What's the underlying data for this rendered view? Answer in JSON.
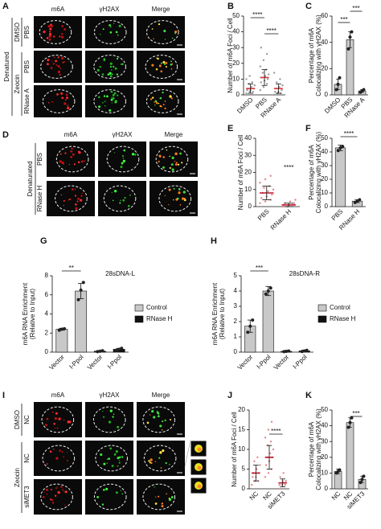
{
  "images": [
    {
      "letter": "A",
      "columns": [
        "m6A",
        "γH2AX",
        "Merge"
      ],
      "outer": "Denatured",
      "groups": [
        {
          "label": "DMSO",
          "rows": [
            "PBS"
          ]
        },
        {
          "label": "Zeocin",
          "rows": [
            "PBS",
            "RNase A"
          ]
        }
      ]
    },
    {
      "letter": "D",
      "columns": [
        "m6A",
        "γH2AX",
        "Merge"
      ],
      "outer": "Denaturated",
      "groups": [
        {
          "rows": [
            "PBS",
            "RNase H"
          ]
        }
      ]
    },
    {
      "letter": "I",
      "columns": [
        "m6A",
        "γH2AX",
        "Merge"
      ],
      "groups": [
        {
          "label": "DMSO",
          "rows": [
            "NC"
          ]
        },
        {
          "label": "Zeocin",
          "rows": [
            "NC",
            "siMET3"
          ]
        }
      ]
    }
  ],
  "chart_data": [
    {
      "type": "dot",
      "panel": "B",
      "ylabel": [
        "Number of m6A Foci / Cell"
      ],
      "categories": [
        "DMSO",
        "PBS",
        "RNase A"
      ],
      "values": [
        4,
        11,
        4
      ],
      "errors": [
        3,
        5,
        3
      ],
      "color": "#9a9a9a",
      "mean_color": "#e0393e",
      "points": [
        [
          1,
          2,
          2,
          3,
          3,
          4,
          4,
          5,
          6,
          7,
          8,
          10,
          12
        ],
        [
          3,
          5,
          7,
          8,
          9,
          10,
          11,
          12,
          13,
          14,
          16,
          18,
          22,
          26,
          30
        ],
        [
          0,
          1,
          1,
          2,
          2,
          3,
          4,
          5,
          6,
          8,
          10,
          14
        ]
      ],
      "ylim": [
        0,
        50
      ],
      "yticks": [
        0,
        10,
        20,
        30,
        40,
        50
      ],
      "annotations": [
        "****",
        "****"
      ]
    },
    {
      "type": "bar",
      "panel": "C",
      "ylabel": [
        "Percentage of m6A",
        "Colocalizing with γH2AX (%)"
      ],
      "categories": [
        "DMSO",
        "PBS",
        "RNase A"
      ],
      "series": [
        {
          "color": "#c8c8c8",
          "values": [
            8,
            42,
            3
          ],
          "errors": [
            4,
            6,
            1
          ],
          "points": [
            [
              4,
              8,
              13
            ],
            [
              35,
              44,
              48
            ],
            [
              2,
              3,
              4
            ]
          ]
        }
      ],
      "ylim": [
        0,
        60
      ],
      "yticks": [
        0,
        20,
        40,
        60
      ],
      "annotations": [
        "***",
        "***"
      ]
    },
    {
      "type": "dot",
      "panel": "E",
      "ylabel": [
        "Number of m6A Foci / Cell"
      ],
      "categories": [
        "PBS",
        "RNase H"
      ],
      "values": [
        8,
        1
      ],
      "errors": [
        4,
        1
      ],
      "color": "#e08a8a",
      "mean_color": "#c0142a",
      "points": [
        [
          2,
          3,
          4,
          5,
          6,
          7,
          8,
          9,
          10,
          11,
          12,
          14,
          16,
          18
        ],
        [
          0,
          0,
          1,
          1,
          1,
          2,
          2,
          3,
          4
        ]
      ],
      "ylim": [
        0,
        40
      ],
      "yticks": [
        0,
        10,
        20,
        30,
        40
      ],
      "annotations": [
        "****"
      ]
    },
    {
      "type": "bar",
      "panel": "F",
      "ylabel": [
        "Percentage of m6A",
        "Colocalizing with γH2AX (%)"
      ],
      "categories": [
        "PBS",
        "RNase H"
      ],
      "series": [
        {
          "color": "#c8c8c8",
          "values": [
            43,
            4
          ],
          "errors": [
            2,
            1
          ],
          "points": [
            [
              41,
              43,
              44
            ],
            [
              3,
              4,
              5
            ]
          ]
        }
      ],
      "ylim": [
        0,
        50
      ],
      "yticks": [
        0,
        10,
        20,
        30,
        40,
        50
      ],
      "annotations": [
        "****"
      ]
    },
    {
      "type": "bar",
      "panel": "G",
      "title": "28sDNA-L",
      "ylabel": [
        "m6A RNA Enrichment",
        "(Relative to Input)"
      ],
      "categories": [
        "Vector",
        "I-Ppol",
        "Vector",
        "I-Ppol"
      ],
      "series": [
        {
          "name": "Control",
          "color": "#c8c8c8",
          "values": [
            2.4,
            6.4,
            null,
            null
          ],
          "errors": [
            0.1,
            0.8,
            null,
            null
          ],
          "points": [
            [
              2.3,
              2.4,
              2.45
            ],
            [
              5.5,
              6.5,
              7.3
            ],
            null,
            null
          ]
        },
        {
          "name": "RNase H",
          "color": "#111111",
          "values": [
            null,
            null,
            0.1,
            0.3
          ],
          "errors": [
            null,
            null,
            0.05,
            0.1
          ],
          "points": [
            null,
            null,
            [
              0.05,
              0.1,
              0.15
            ],
            [
              0.2,
              0.3,
              0.4
            ]
          ]
        }
      ],
      "ylim": [
        0,
        8
      ],
      "yticks": [
        0,
        2,
        4,
        6,
        8
      ],
      "annotations": [
        "**"
      ]
    },
    {
      "type": "bar",
      "panel": "H",
      "title": "28sDNA-R",
      "ylabel": [
        "m6A RNA Enrichment",
        "(Relative to Input)"
      ],
      "categories": [
        "Vector",
        "I-Ppol",
        "Vector",
        "I-Ppol"
      ],
      "series": [
        {
          "name": "Control",
          "color": "#c8c8c8",
          "values": [
            1.7,
            4.0,
            null,
            null
          ],
          "errors": [
            0.4,
            0.3,
            null,
            null
          ],
          "points": [
            [
              1.3,
              1.7,
              2.1
            ],
            [
              3.8,
              4.0,
              4.2
            ],
            null,
            null
          ]
        },
        {
          "name": "RNase H",
          "color": "#111111",
          "values": [
            null,
            null,
            0.05,
            0.08
          ],
          "errors": [
            null,
            null,
            0.03,
            0.05
          ],
          "points": [
            null,
            null,
            [
              0.03,
              0.05,
              0.07
            ],
            [
              0.04,
              0.08,
              0.12
            ]
          ]
        }
      ],
      "ylim": [
        0,
        5
      ],
      "yticks": [
        0,
        1,
        2,
        3,
        4,
        5
      ],
      "annotations": [
        "***"
      ]
    },
    {
      "type": "dot",
      "panel": "J",
      "ylabel": [
        "Number of m6A Foci / Cell"
      ],
      "categories": [
        "NC",
        "NC",
        "siMET3"
      ],
      "values": [
        4,
        8,
        1.5
      ],
      "errors": [
        2,
        3,
        1
      ],
      "color": "#e08a8a",
      "mean_color": "#c0142a",
      "points": [
        [
          1,
          2,
          2,
          3,
          3,
          4,
          4,
          5,
          6,
          7,
          8
        ],
        [
          3,
          4,
          5,
          6,
          7,
          8,
          8,
          9,
          10,
          11,
          12,
          13,
          15,
          17
        ],
        [
          0,
          1,
          1,
          1,
          2,
          2,
          3,
          4
        ]
      ],
      "ylim": [
        0,
        20
      ],
      "yticks": [
        0,
        5,
        10,
        15,
        20
      ],
      "annotations": [
        "****"
      ]
    },
    {
      "type": "bar",
      "panel": "K",
      "ylabel": [
        "Percentage of m6A",
        "Colocalizing with γH2AX (%)"
      ],
      "categories": [
        "NC",
        "NC",
        "siMET3"
      ],
      "series": [
        {
          "color": "#c8c8c8",
          "values": [
            11,
            42,
            6
          ],
          "errors": [
            1.5,
            3,
            2
          ],
          "points": [
            [
              10,
              11,
              12
            ],
            [
              39,
              42,
              45
            ],
            [
              4,
              6,
              8
            ]
          ]
        }
      ],
      "ylim": [
        0,
        50
      ],
      "yticks": [
        0,
        10,
        20,
        30,
        40,
        50
      ],
      "annotations": [
        "***"
      ]
    }
  ]
}
